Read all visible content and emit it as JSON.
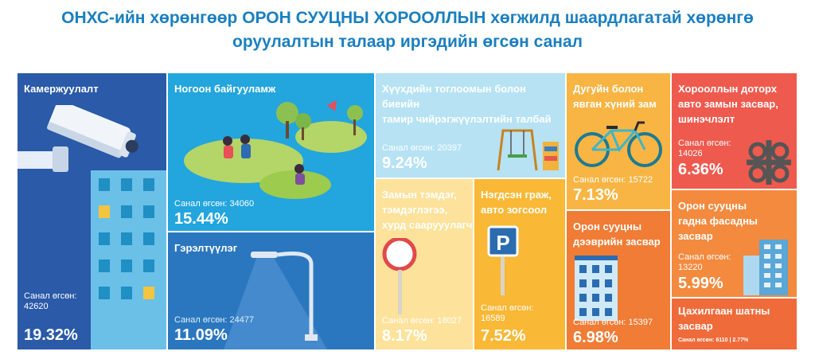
{
  "title": {
    "line1": "ОНХС-ийн хөрөнгөөр ОРОН СУУЦНЫ ХОРООЛЛЫН хөгжилд шаардлагатай хөрөнгө",
    "line2": "оруулалтын талаар иргэдийн өгсөн санал"
  },
  "tiles": {
    "cam": {
      "label": "Камержуулалт",
      "count_label": "Санал өгсөн:",
      "count": "42620",
      "pct": "19.32%"
    },
    "green": {
      "label": "Ногоон байгууламж",
      "count": "Санал өгсөн: 34060",
      "pct": "15.44%"
    },
    "light": {
      "label": "Гэрэлтүүлэг",
      "count": "Санал өгсөн: 24477",
      "pct": "11.09%"
    },
    "play": {
      "label1": "Хүүхдийн тоглоомын болон биеийн",
      "label2": "тамир чийрэгжүүлэлтийн талбай",
      "count": "Санал өгсөн: 20397",
      "pct": "9.24%"
    },
    "sign": {
      "label1": "Замын тэмдэг,",
      "label2": "тэмдэглэгээ,",
      "label3": "хурд саарууулагч",
      "count": "Санал өгсөн: 18027",
      "pct": "8.17%"
    },
    "park": {
      "label1": "Нэгдсэн граж,",
      "label2": "авто зогсоол",
      "count_label": "Санал өгсөн:",
      "count": "16589",
      "pct": "7.52%"
    },
    "bike": {
      "label1": "Дугуйн болон",
      "label2": "явган хүний зам",
      "count": "Санал өгсөн: 15722",
      "pct": "7.13%"
    },
    "roof": {
      "label1": "Орон сууцны",
      "label2": "дээврийн засвар",
      "count": "Санал өгсөн: 15397",
      "pct": "6.98%"
    },
    "road": {
      "label1": "Хорооллын доторх",
      "label2": "авто замын засвар,",
      "label3": "шинэчлэлт",
      "count_label": "Санал өгсөн:",
      "count": "14026",
      "pct": "6.36%"
    },
    "facade": {
      "label1": "Орон сууцны",
      "label2": "гадна фасадны",
      "label3": "засвар",
      "count_label": "Санал өгсөн:",
      "count": "13220",
      "pct": "5.99%"
    },
    "elev": {
      "label1": "Цахилгаан шатны",
      "label2": "засвар",
      "footer": "Санал өгсөн: 6110   |   2.77%"
    }
  },
  "icons": [
    "security-camera-icon",
    "park-people-icon",
    "street-lamp-icon",
    "playground-icon",
    "speed-sign-icon",
    "parking-sign-icon",
    "bicycle-icon",
    "building-icon",
    "road-interchange-icon",
    "tower-building-icon"
  ],
  "colors": {
    "title": "#1a7fbf",
    "cam": "#2a5aa8",
    "green": "#23a5de",
    "light": "#2b77bf",
    "play": "#b6e2f4",
    "sign": "#fde29b",
    "park": "#f9b836",
    "bike": "#f8b544",
    "roof": "#f07c35",
    "road": "#ef5a4e",
    "facade": "#f38a3e",
    "elev": "#f06b3a"
  }
}
